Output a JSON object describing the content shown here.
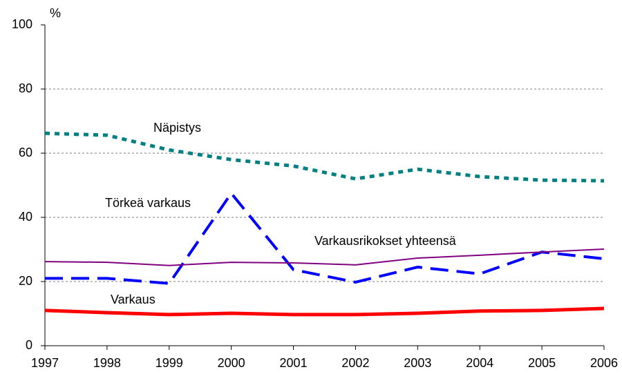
{
  "chart_data": {
    "type": "line",
    "y_unit": "%",
    "categories": [
      "1997",
      "1998",
      "1999",
      "2000",
      "2001",
      "2002",
      "2003",
      "2004",
      "2005",
      "2006"
    ],
    "series": [
      {
        "name": "Näpistys",
        "color": "#008080",
        "style": "dotted",
        "values": [
          66.2,
          65.6,
          61,
          58,
          56,
          52,
          55,
          52.7,
          51.6,
          51.4
        ]
      },
      {
        "name": "Törkeä varkaus",
        "color": "#0000ff",
        "style": "dashed",
        "values": [
          21,
          21,
          19.4,
          47.5,
          23.7,
          19.8,
          24.5,
          22.4,
          29.2,
          27.1
        ]
      },
      {
        "name": "Varkausrikokset yhteensä",
        "color": "#800080",
        "style": "solid",
        "values": [
          26.2,
          26,
          25,
          26,
          25.8,
          25.2,
          27.3,
          28.2,
          29.2,
          30.1
        ]
      },
      {
        "name": "Varkaus",
        "color": "#ff0000",
        "style": "solid",
        "values": [
          11,
          10.3,
          9.7,
          10.1,
          9.7,
          9.7,
          10.1,
          10.8,
          11,
          11.6
        ]
      }
    ],
    "ylim": [
      0,
      100
    ],
    "yticks": [
      0,
      20,
      40,
      60,
      80,
      100
    ],
    "grid": true
  }
}
